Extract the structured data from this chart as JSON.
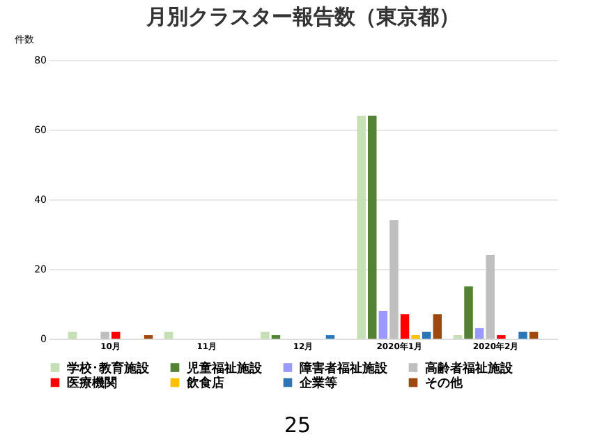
{
  "chart_data": {
    "type": "bar",
    "title": "月別クラスター報告数（東京都）",
    "ylabel": "件数",
    "categories": [
      "10月",
      "11月",
      "12月",
      "2020年1月",
      "2020年2月"
    ],
    "series": [
      {
        "name": "学校･教育施設",
        "color": "#c5e0b4",
        "values": [
          2,
          2,
          2,
          64,
          1
        ]
      },
      {
        "name": "児童福祉施設",
        "color": "#548235",
        "values": [
          0,
          0,
          1,
          64,
          15
        ]
      },
      {
        "name": "障害者福祉施設",
        "color": "#9999ff",
        "values": [
          0,
          0,
          0,
          8,
          3
        ]
      },
      {
        "name": "高齢者福祉施設",
        "color": "#bfbfbf",
        "values": [
          2,
          0,
          0,
          34,
          24
        ]
      },
      {
        "name": "医療機関",
        "color": "#ff0000",
        "values": [
          2,
          0,
          0,
          7,
          1
        ]
      },
      {
        "name": "飲食店",
        "color": "#ffc000",
        "values": [
          0,
          0,
          0,
          1,
          0
        ]
      },
      {
        "name": "企業等",
        "color": "#2e75b6",
        "values": [
          0,
          0,
          1,
          2,
          2
        ]
      },
      {
        "name": "その他",
        "color": "#9e480e",
        "values": [
          1,
          0,
          0,
          7,
          2
        ]
      }
    ],
    "ylim": [
      0,
      80
    ],
    "yticks": [
      0,
      20,
      40,
      60,
      80
    ],
    "grid": "y",
    "legend": "bottom",
    "annotations": [
      "25"
    ]
  }
}
